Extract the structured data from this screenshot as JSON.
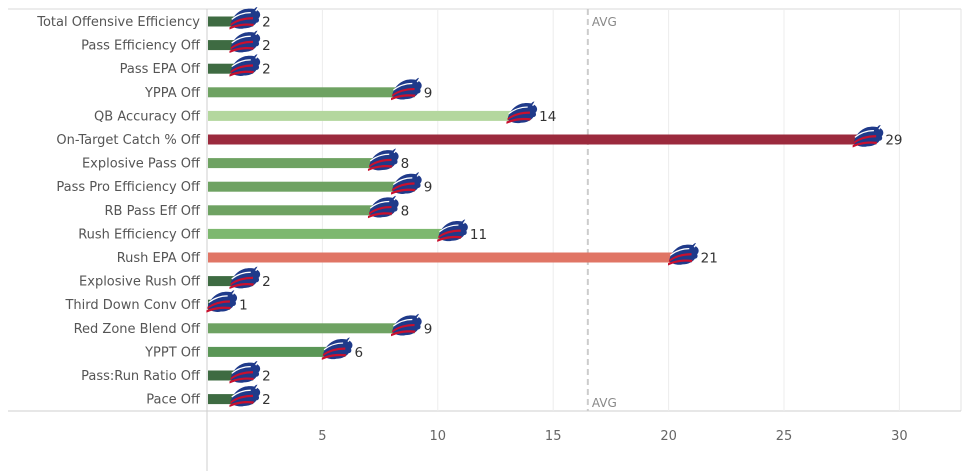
{
  "chart_data": {
    "type": "bar",
    "orientation": "horizontal",
    "categories": [
      "Total Offensive Efficiency",
      "Pass Efficiency Off",
      "Pass EPA Off",
      "YPPA Off",
      "QB Accuracy Off",
      "On-Target Catch % Off",
      "Explosive Pass Off",
      "Pass Pro Efficiency Off",
      "RB Pass Eff Off",
      "Rush Efficiency Off",
      "Rush EPA Off",
      "Explosive Rush Off",
      "Third Down Conv Off",
      "Red Zone Blend Off",
      "YPPT Off",
      "Pass:Run Ratio Off",
      "Pace Off"
    ],
    "values": [
      2,
      2,
      2,
      9,
      14,
      29,
      8,
      9,
      8,
      11,
      21,
      2,
      1,
      9,
      6,
      2,
      2
    ],
    "bar_colors": [
      "#3e6b42",
      "#3e6b42",
      "#3e6b42",
      "#6ea262",
      "#b4d79e",
      "#9b2a3d",
      "#6ea262",
      "#6ea262",
      "#6ea262",
      "#7db86f",
      "#e07565",
      "#3e6b42",
      "#3e6b42",
      "#6ea262",
      "#5a9656",
      "#3e6b42",
      "#3e6b42"
    ],
    "xlim": [
      0,
      33
    ],
    "xticks": [
      5,
      10,
      15,
      20,
      25,
      30
    ],
    "reference_line": {
      "value": 16.5,
      "label": "AVG"
    },
    "marker_icon": "bills-logo-icon",
    "grid": true
  }
}
